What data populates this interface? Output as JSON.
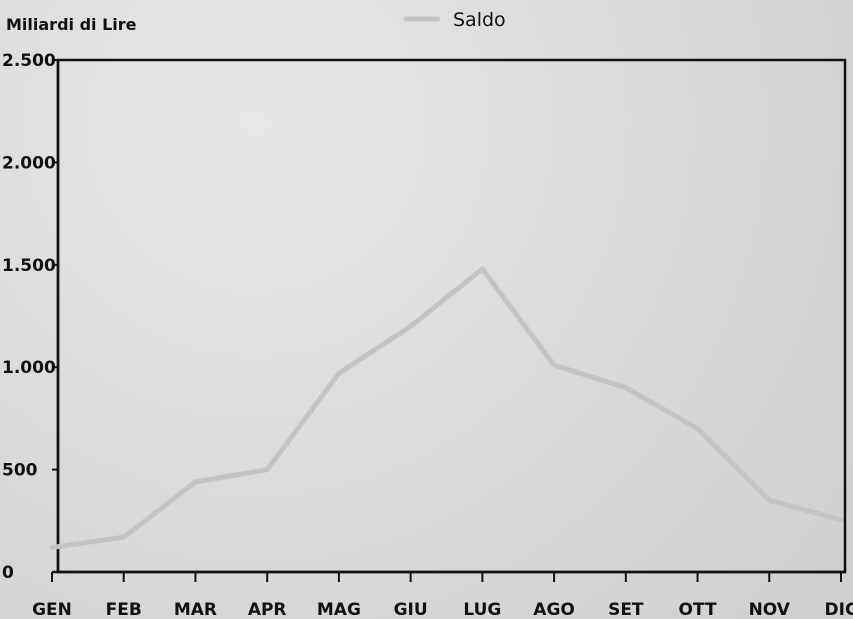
{
  "chart_data": {
    "type": "line",
    "title": "",
    "ylabel": "Miliardi di Lire",
    "xlabel": "",
    "categories": [
      "GEN",
      "FEB",
      "MAR",
      "APR",
      "MAG",
      "GIU",
      "LUG",
      "AGO",
      "SET",
      "OTT",
      "NOV",
      "DIC"
    ],
    "series": [
      {
        "name": "Saldo",
        "values": [
          120,
          170,
          440,
          500,
          970,
          1200,
          1480,
          1010,
          900,
          700,
          350,
          255
        ],
        "color": "#c4c4c4"
      }
    ],
    "ylim": [
      0,
      2500
    ],
    "yticks": [
      0,
      500,
      1000,
      1500,
      2000,
      2500
    ],
    "ytick_labels": [
      "0",
      "500",
      "1.000",
      "1.500",
      "2.000",
      "2.500"
    ],
    "grid": false,
    "legend_position": "top-center"
  }
}
